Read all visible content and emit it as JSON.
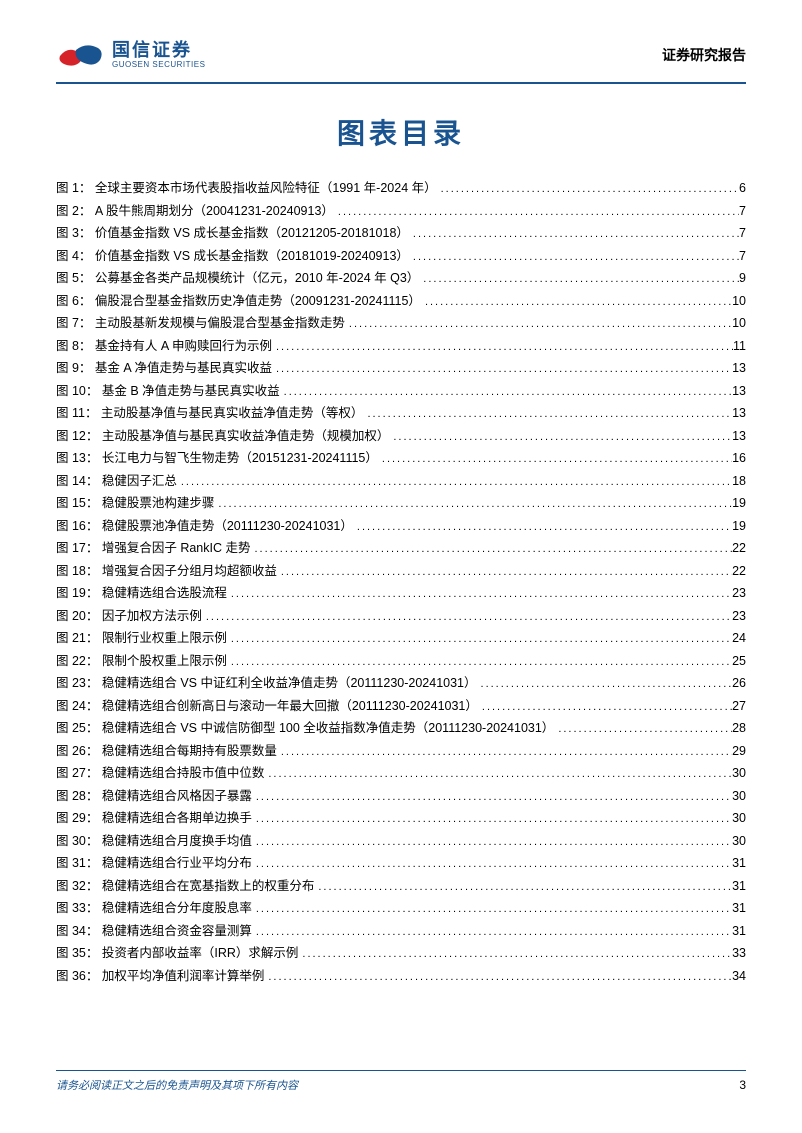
{
  "colors": {
    "brand_blue": "#1a5490",
    "logo_red": "#d6232a",
    "text": "#000000",
    "background": "#ffffff"
  },
  "header": {
    "company_cn": "国信证券",
    "company_en": "GUOSEN SECURITIES",
    "report_type": "证券研究报告"
  },
  "title": "图表目录",
  "toc": [
    {
      "label": "图 1：  全球主要资本市场代表股指收益风险特征（1991 年-2024 年）",
      "page": "6"
    },
    {
      "label": "图 2：  A 股牛熊周期划分（20041231-20240913）",
      "page": "7"
    },
    {
      "label": "图 3：  价值基金指数 VS 成长基金指数（20121205-20181018）",
      "page": "7"
    },
    {
      "label": "图 4：  价值基金指数 VS 成长基金指数（20181019-20240913）",
      "page": "7"
    },
    {
      "label": "图 5：  公募基金各类产品规模统计（亿元，2010 年-2024 年 Q3）",
      "page": "9"
    },
    {
      "label": "图 6：  偏股混合型基金指数历史净值走势（20091231-20241115）",
      "page": "10"
    },
    {
      "label": "图 7：  主动股基新发规模与偏股混合型基金指数走势",
      "page": "10"
    },
    {
      "label": "图 8：  基金持有人 A 申购赎回行为示例",
      "page": "11"
    },
    {
      "label": "图 9：  基金 A 净值走势与基民真实收益",
      "page": "13"
    },
    {
      "label": "图 10：  基金 B 净值走势与基民真实收益",
      "page": "13"
    },
    {
      "label": "图 11：  主动股基净值与基民真实收益净值走势（等权）",
      "page": "13"
    },
    {
      "label": "图 12：  主动股基净值与基民真实收益净值走势（规模加权）",
      "page": "13"
    },
    {
      "label": "图 13：  长江电力与智飞生物走势（20151231-20241115）",
      "page": "16"
    },
    {
      "label": "图 14：  稳健因子汇总",
      "page": "18"
    },
    {
      "label": "图 15：  稳健股票池构建步骤",
      "page": "19"
    },
    {
      "label": "图 16：  稳健股票池净值走势（20111230-20241031）",
      "page": "19"
    },
    {
      "label": "图 17：  增强复合因子 RankIC 走势",
      "page": "22"
    },
    {
      "label": "图 18：  增强复合因子分组月均超额收益",
      "page": "22"
    },
    {
      "label": "图 19：  稳健精选组合选股流程",
      "page": "23"
    },
    {
      "label": "图 20：  因子加权方法示例",
      "page": "23"
    },
    {
      "label": "图 21：  限制行业权重上限示例",
      "page": "24"
    },
    {
      "label": "图 22：  限制个股权重上限示例",
      "page": "25"
    },
    {
      "label": "图 23：  稳健精选组合 VS 中证红利全收益净值走势（20111230-20241031）",
      "page": "26"
    },
    {
      "label": "图 24：  稳健精选组合创新高日与滚动一年最大回撤（20111230-20241031）",
      "page": "27"
    },
    {
      "label": "图 25：  稳健精选组合 VS 中诚信防御型 100 全收益指数净值走势（20111230-20241031）",
      "page": "28"
    },
    {
      "label": "图 26：  稳健精选组合每期持有股票数量",
      "page": "29"
    },
    {
      "label": "图 27：  稳健精选组合持股市值中位数",
      "page": "30"
    },
    {
      "label": "图 28：  稳健精选组合风格因子暴露",
      "page": "30"
    },
    {
      "label": "图 29：  稳健精选组合各期单边换手",
      "page": "30"
    },
    {
      "label": "图 30：  稳健精选组合月度换手均值",
      "page": "30"
    },
    {
      "label": "图 31：  稳健精选组合行业平均分布",
      "page": "31"
    },
    {
      "label": "图 32：  稳健精选组合在宽基指数上的权重分布",
      "page": "31"
    },
    {
      "label": "图 33：  稳健精选组合分年度股息率",
      "page": "31"
    },
    {
      "label": "图 34：  稳健精选组合资金容量测算",
      "page": "31"
    },
    {
      "label": "图 35：  投资者内部收益率（IRR）求解示例",
      "page": "33"
    },
    {
      "label": "图 36：  加权平均净值利润率计算举例",
      "page": "34"
    }
  ],
  "footer": {
    "disclaimer": "请务必阅读正文之后的免责声明及其项下所有内容",
    "page_number": "3"
  }
}
